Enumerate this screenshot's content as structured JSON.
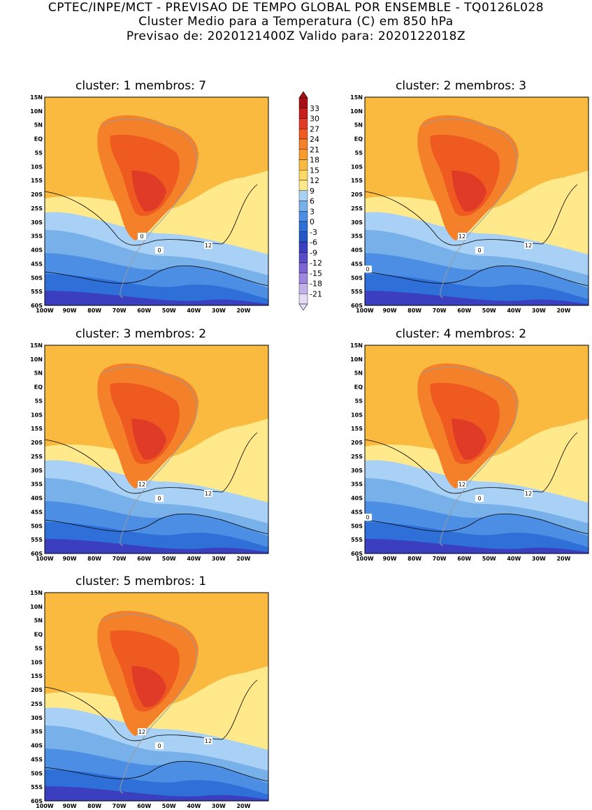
{
  "header": {
    "line1": "CPTEC/INPE/MCT - PREVISAO DE TEMPO GLOBAL POR ENSEMBLE - TQ0126L028",
    "line2": "Cluster Medio para a Temperatura (C) em 850 hPa",
    "line3": "Previsao de: 2020121400Z   Valido para: 2020122018Z"
  },
  "axes": {
    "lat_labels": [
      "15N",
      "10N",
      "5N",
      "EQ",
      "5S",
      "10S",
      "15S",
      "20S",
      "25S",
      "30S",
      "35S",
      "40S",
      "45S",
      "50S",
      "55S",
      "60S"
    ],
    "lon_labels": [
      "100W",
      "90W",
      "80W",
      "70W",
      "60W",
      "50W",
      "40W",
      "30W",
      "20W"
    ]
  },
  "colorbar": {
    "levels": [
      "33",
      "30",
      "27",
      "24",
      "21",
      "18",
      "15",
      "12",
      "9",
      "6",
      "3",
      "0",
      "-3",
      "-6",
      "-9",
      "-12",
      "-15",
      "-18",
      "-21"
    ],
    "colors": [
      "#a50f15",
      "#c81d1d",
      "#e03b26",
      "#ef5a20",
      "#f4802a",
      "#f79d2e",
      "#fab93f",
      "#fdd867",
      "#ffe98a",
      "#a9d1f5",
      "#78b0ea",
      "#4c8ee3",
      "#2e6fd8",
      "#2355c4",
      "#3b3fbf",
      "#5b4cc8",
      "#7c64d3",
      "#9f86de",
      "#c3b1ec",
      "#e4dcf6"
    ]
  },
  "panels": [
    {
      "title": "cluster: 1   membros: 7",
      "labels": [
        "12",
        "0",
        "0"
      ]
    },
    {
      "title": "cluster: 2   membros: 3",
      "labels": [
        "12",
        "12",
        "0",
        "0"
      ]
    },
    {
      "title": "cluster: 3   membros: 2",
      "labels": [
        "12",
        "12",
        "0"
      ]
    },
    {
      "title": "cluster: 4   membros: 2",
      "labels": [
        "12",
        "12",
        "0",
        "0"
      ]
    },
    {
      "title": "cluster: 5   membros: 1",
      "labels": [
        "12",
        "12",
        "0"
      ]
    }
  ]
}
